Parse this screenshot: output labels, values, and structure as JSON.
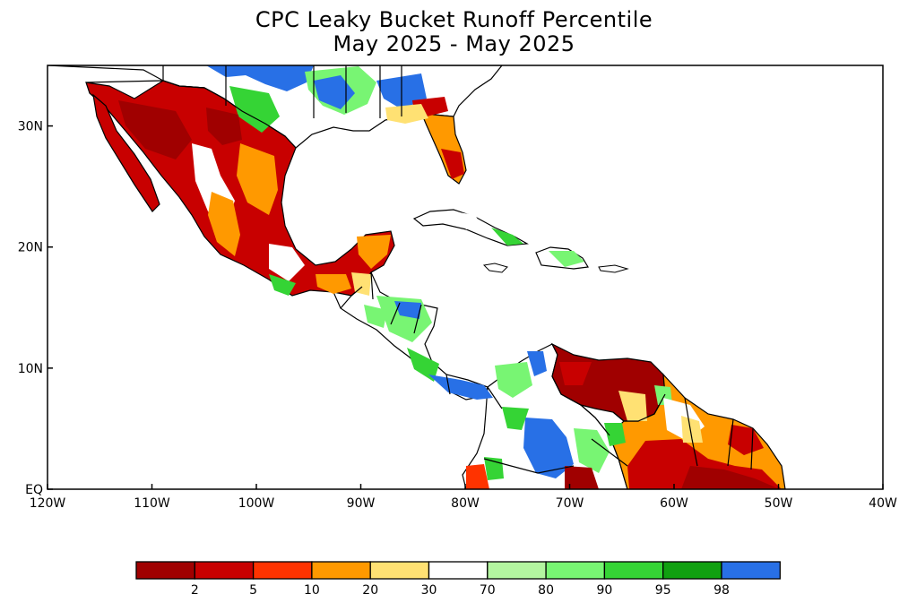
{
  "title": {
    "line1": "CPC Leaky Bucket Runoff Percentile",
    "line2": "May 2025 - May 2025"
  },
  "axes": {
    "lon_range": [
      -120,
      -40
    ],
    "lat_range": [
      0,
      35
    ],
    "x_ticks": [
      {
        "lon": -120,
        "label": "120W"
      },
      {
        "lon": -110,
        "label": "110W"
      },
      {
        "lon": -100,
        "label": "100W"
      },
      {
        "lon": -90,
        "label": "90W"
      },
      {
        "lon": -80,
        "label": "80W"
      },
      {
        "lon": -70,
        "label": "70W"
      },
      {
        "lon": -60,
        "label": "60W"
      },
      {
        "lon": -50,
        "label": "50W"
      },
      {
        "lon": -40,
        "label": "40W"
      }
    ],
    "y_ticks": [
      {
        "lat": 0,
        "label": "EQ"
      },
      {
        "lat": 10,
        "label": "10N"
      },
      {
        "lat": 20,
        "label": "20N"
      },
      {
        "lat": 30,
        "label": "30N"
      }
    ]
  },
  "legend": {
    "colors": [
      "#a00000",
      "#c80000",
      "#ff3300",
      "#ff9900",
      "#ffe173",
      "#ffffff",
      "#b3f5a0",
      "#78f573",
      "#35d435",
      "#10a010",
      "#2870e6"
    ],
    "labels": [
      "2",
      "5",
      "10",
      "20",
      "30",
      "70",
      "80",
      "90",
      "95",
      "98"
    ]
  },
  "regions": {
    "mexico": "#c80000",
    "us_south": "#ffffff",
    "florida": "#ff9900",
    "central_america": "#ffffff",
    "venezuela": "#a00000",
    "guiana": "#ff9900",
    "colombia": "#ffffff",
    "cuba": "#ffffff",
    "hispaniola": "#ffffff"
  }
}
